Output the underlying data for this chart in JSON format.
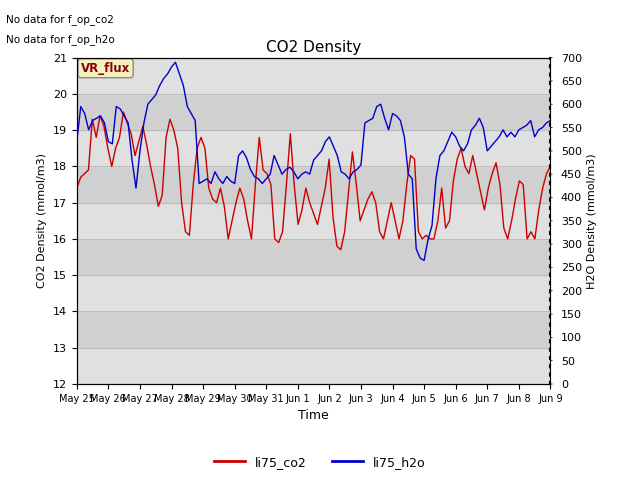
{
  "title": "CO2 Density",
  "xlabel": "Time",
  "ylabel_left": "CO2 Density (mmol/m3)",
  "ylabel_right": "H2O Density (mmol/m3)",
  "ylim_left": [
    12.0,
    21.0
  ],
  "ylim_right": [
    0,
    700
  ],
  "yticks_left": [
    12.0,
    13.0,
    14.0,
    15.0,
    16.0,
    17.0,
    18.0,
    19.0,
    20.0,
    21.0
  ],
  "yticks_right": [
    0,
    50,
    100,
    150,
    200,
    250,
    300,
    350,
    400,
    450,
    500,
    550,
    600,
    650,
    700
  ],
  "color_co2": "#cc0000",
  "color_h2o": "#0000cc",
  "line_width": 1.0,
  "bg_color": "#ffffff",
  "plot_bg": "#ffffff",
  "band_color": "#e0e0e0",
  "no_data_text1": "No data for f_op_co2",
  "no_data_text2": "No data for f_op_h2o",
  "vr_flux_label": "VR_flux",
  "vr_flux_color": "#8b0000",
  "legend_labels": [
    "li75_co2",
    "li75_h2o"
  ],
  "xticklabels": [
    "May 25",
    "May 26",
    "May 27",
    "May 28",
    "May 29",
    "May 30",
    "May 31",
    "Jun 1",
    "Jun 2",
    "Jun 3",
    "Jun 4",
    "Jun 5",
    "Jun 6",
    "Jun 7",
    "Jun 8",
    "Jun 9"
  ],
  "co2_data": [
    17.4,
    17.7,
    17.8,
    17.9,
    19.3,
    18.8,
    19.4,
    19.1,
    18.5,
    18.0,
    18.5,
    18.8,
    19.5,
    19.2,
    18.9,
    18.3,
    18.7,
    19.1,
    18.6,
    18.0,
    17.5,
    16.9,
    17.2,
    18.8,
    19.3,
    19.0,
    18.5,
    17.0,
    16.2,
    16.1,
    17.5,
    18.5,
    18.8,
    18.5,
    17.4,
    17.1,
    17.0,
    17.4,
    16.9,
    16.0,
    16.5,
    17.0,
    17.4,
    17.1,
    16.5,
    16.0,
    17.5,
    18.8,
    17.9,
    17.8,
    17.5,
    16.0,
    15.9,
    16.2,
    17.5,
    18.9,
    17.5,
    16.4,
    16.8,
    17.4,
    17.0,
    16.7,
    16.4,
    16.9,
    17.4,
    18.2,
    16.6,
    15.8,
    15.7,
    16.2,
    17.3,
    18.4,
    17.5,
    16.5,
    16.8,
    17.1,
    17.3,
    17.0,
    16.2,
    16.0,
    16.5,
    17.0,
    16.5,
    16.0,
    16.5,
    17.5,
    18.3,
    18.2,
    16.2,
    16.0,
    16.1,
    16.0,
    16.0,
    16.5,
    17.4,
    16.3,
    16.5,
    17.6,
    18.2,
    18.5,
    18.0,
    17.8,
    18.3,
    17.8,
    17.3,
    16.8,
    17.4,
    17.8,
    18.1,
    17.5,
    16.3,
    16.0,
    16.5,
    17.1,
    17.6,
    17.5,
    16.0,
    16.2,
    16.0,
    16.8,
    17.4,
    17.8,
    18.0
  ],
  "h2o_data": [
    520,
    595,
    580,
    545,
    565,
    570,
    575,
    560,
    520,
    515,
    595,
    590,
    575,
    560,
    480,
    420,
    500,
    560,
    600,
    610,
    620,
    640,
    655,
    665,
    680,
    690,
    665,
    640,
    595,
    580,
    565,
    430,
    435,
    440,
    430,
    455,
    440,
    430,
    445,
    435,
    430,
    490,
    500,
    485,
    460,
    445,
    440,
    430,
    440,
    450,
    490,
    470,
    450,
    460,
    465,
    455,
    440,
    450,
    455,
    450,
    480,
    490,
    500,
    520,
    530,
    510,
    490,
    455,
    450,
    440,
    455,
    460,
    470,
    560,
    565,
    570,
    595,
    600,
    570,
    545,
    580,
    575,
    565,
    530,
    450,
    440,
    290,
    270,
    265,
    310,
    340,
    440,
    490,
    500,
    520,
    540,
    530,
    510,
    500,
    515,
    545,
    555,
    570,
    550,
    500,
    510,
    520,
    530,
    545,
    530,
    540,
    530,
    545,
    550,
    555,
    565,
    530,
    545,
    550,
    560,
    565
  ]
}
